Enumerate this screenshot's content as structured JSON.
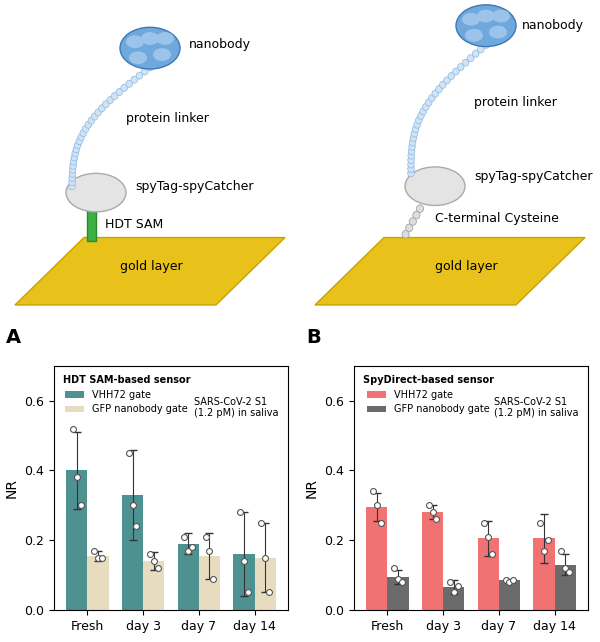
{
  "diagrams": [
    {
      "labels": [
        "nanobody",
        "protein linker",
        "spyTag-spyCatcher",
        "HDT SAM",
        "gold layer"
      ]
    },
    {
      "labels": [
        "nanobody",
        "protein linker",
        "spyTag-spyCatcher",
        "C-terminal Cysteine",
        "gold layer"
      ]
    }
  ],
  "chart_data": [
    {
      "type": "bar",
      "panel": "A",
      "title": "HDT SAM-based sensor",
      "annotation": "SARS-CoV-2 S1\n(1.2 pM) in saliva",
      "y_label": "NR",
      "categories": [
        "Fresh",
        "day 3",
        "day 7",
        "day 14"
      ],
      "ylim": [
        0,
        0.7
      ],
      "yticks": [
        0.0,
        0.2,
        0.4,
        0.6
      ],
      "legend": "upper left",
      "series": [
        {
          "name": "VHH72 gate",
          "color": "#4d9191",
          "values": [
            0.4,
            0.33,
            0.19,
            0.16
          ],
          "errors": [
            0.11,
            0.13,
            0.03,
            0.12
          ],
          "points": [
            [
              0.52,
              0.38,
              0.3
            ],
            [
              0.45,
              0.3,
              0.24
            ],
            [
              0.21,
              0.17,
              0.18
            ],
            [
              0.28,
              0.14,
              0.05
            ]
          ]
        },
        {
          "name": "GFP nanobody gate",
          "color": "#e8dcc0",
          "values": [
            0.155,
            0.14,
            0.155,
            0.15
          ],
          "errors": [
            0.015,
            0.025,
            0.065,
            0.1
          ],
          "points": [
            [
              0.17,
              0.15,
              0.15
            ],
            [
              0.16,
              0.14,
              0.12
            ],
            [
              0.21,
              0.17,
              0.09
            ],
            [
              0.25,
              0.15,
              0.05
            ]
          ]
        }
      ]
    },
    {
      "type": "bar",
      "panel": "B",
      "title": "SpyDirect-based sensor",
      "annotation": "SARS-CoV-2 S1\n(1.2 pM) in saliva",
      "y_label": "NR",
      "categories": [
        "Fresh",
        "day 3",
        "day 7",
        "day 14"
      ],
      "ylim": [
        0,
        0.7
      ],
      "yticks": [
        0.0,
        0.2,
        0.4,
        0.6
      ],
      "legend": "upper left",
      "series": [
        {
          "name": "VHH72 gate",
          "color": "#f07272",
          "values": [
            0.295,
            0.28,
            0.205,
            0.205
          ],
          "errors": [
            0.04,
            0.02,
            0.05,
            0.07
          ],
          "points": [
            [
              0.34,
              0.3,
              0.25
            ],
            [
              0.3,
              0.28,
              0.26
            ],
            [
              0.25,
              0.21,
              0.16
            ],
            [
              0.25,
              0.17,
              0.2
            ]
          ]
        },
        {
          "name": "GFP nanobody gate",
          "color": "#6b6b6b",
          "values": [
            0.095,
            0.065,
            0.085,
            0.13
          ],
          "errors": [
            0.02,
            0.02,
            0.005,
            0.03
          ],
          "points": [
            [
              0.12,
              0.09,
              0.08
            ],
            [
              0.08,
              0.05,
              0.07
            ],
            [
              0.085,
              0.08,
              0.085
            ],
            [
              0.17,
              0.12,
              0.11
            ]
          ]
        }
      ]
    }
  ]
}
